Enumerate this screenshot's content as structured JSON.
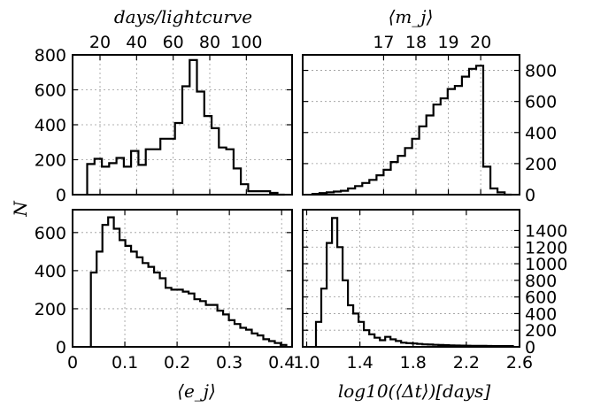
{
  "chart_data": [
    {
      "type": "histogram",
      "panel": "top-left",
      "xlabel": "days/lightcurve",
      "ylabel": "N",
      "xlim": [
        5,
        125
      ],
      "ylim": [
        0,
        800
      ],
      "xticks": [
        "20",
        "40",
        "60",
        "80",
        "100"
      ],
      "xtick_values": [
        20,
        40,
        60,
        80,
        100
      ],
      "yticks": [
        "0",
        "200",
        "400",
        "600",
        "800"
      ],
      "ytick_values": [
        0,
        200,
        400,
        600,
        800
      ],
      "bin_edges": [
        13,
        17,
        21,
        25,
        29,
        33,
        37,
        41,
        45,
        49,
        53,
        57,
        61,
        65,
        69,
        73,
        77,
        81,
        85,
        89,
        93,
        97,
        101,
        105,
        109,
        113,
        117,
        121
      ],
      "counts": [
        175,
        205,
        160,
        180,
        210,
        160,
        250,
        170,
        260,
        260,
        320,
        320,
        410,
        620,
        770,
        590,
        450,
        380,
        270,
        260,
        150,
        60,
        20,
        20,
        20,
        10,
        0
      ],
      "grid": true
    },
    {
      "type": "histogram",
      "panel": "top-right",
      "xlabel": "⟨m_j⟩",
      "xlim": [
        14.5,
        21.2
      ],
      "ylim": [
        0,
        900
      ],
      "xticks": [
        "17",
        "18",
        "19",
        "20"
      ],
      "xtick_values": [
        17,
        18,
        19,
        20
      ],
      "yticks": [
        "0",
        "200",
        "400",
        "600",
        "800"
      ],
      "ytick_values": [
        0,
        200,
        400,
        600,
        800
      ],
      "bin_edges": [
        14.8,
        15.02,
        15.24,
        15.46,
        15.68,
        15.9,
        16.12,
        16.34,
        16.56,
        16.78,
        17.0,
        17.22,
        17.44,
        17.66,
        17.88,
        18.1,
        18.32,
        18.54,
        18.76,
        18.98,
        19.2,
        19.42,
        19.64,
        19.86,
        20.08,
        20.3,
        20.52,
        20.74,
        20.96
      ],
      "counts": [
        5,
        10,
        15,
        20,
        25,
        40,
        55,
        75,
        95,
        125,
        160,
        210,
        250,
        300,
        360,
        440,
        510,
        580,
        620,
        680,
        700,
        760,
        810,
        830,
        180,
        40,
        15,
        0
      ],
      "grid": true
    },
    {
      "type": "histogram",
      "panel": "bottom-left",
      "xlabel": "⟨e_j⟩",
      "ylabel": "N",
      "xlim": [
        0,
        0.42
      ],
      "ylim": [
        0,
        720
      ],
      "xticks": [
        "0",
        "0.1",
        "0.2",
        "0.3",
        "0.4"
      ],
      "xtick_values": [
        0,
        0.1,
        0.2,
        0.3,
        0.4
      ],
      "yticks": [
        "0",
        "200",
        "400",
        "600"
      ],
      "ytick_values": [
        0,
        200,
        400,
        600
      ],
      "bin_edges": [
        0.035,
        0.046,
        0.057,
        0.068,
        0.079,
        0.09,
        0.101,
        0.112,
        0.123,
        0.134,
        0.145,
        0.156,
        0.167,
        0.178,
        0.189,
        0.2,
        0.211,
        0.222,
        0.233,
        0.244,
        0.255,
        0.266,
        0.277,
        0.288,
        0.299,
        0.31,
        0.321,
        0.332,
        0.343,
        0.354,
        0.365,
        0.376,
        0.387,
        0.398,
        0.409
      ],
      "counts": [
        390,
        500,
        640,
        680,
        620,
        560,
        530,
        500,
        470,
        440,
        420,
        390,
        360,
        310,
        300,
        300,
        290,
        280,
        250,
        240,
        220,
        220,
        190,
        170,
        140,
        120,
        100,
        90,
        70,
        60,
        40,
        30,
        20,
        10
      ],
      "grid": true
    },
    {
      "type": "histogram",
      "panel": "bottom-right",
      "xlabel": "log10(⟨Δt⟩)[days]",
      "xlim": [
        0.97,
        2.6
      ],
      "ylim": [
        0,
        1650
      ],
      "xticks": [
        "1.0",
        "1.4",
        "1.8",
        "2.2",
        "2.6"
      ],
      "xtick_values": [
        1.0,
        1.4,
        1.8,
        2.2,
        2.6
      ],
      "yticks": [
        "0",
        "200",
        "400",
        "600",
        "800",
        "1000",
        "1200",
        "1400"
      ],
      "ytick_values": [
        0,
        200,
        400,
        600,
        800,
        1000,
        1200,
        1400
      ],
      "bin_edges": [
        1.07,
        1.11,
        1.15,
        1.19,
        1.23,
        1.27,
        1.31,
        1.35,
        1.39,
        1.43,
        1.47,
        1.51,
        1.55,
        1.59,
        1.63,
        1.67,
        1.71,
        1.75,
        1.79,
        1.83,
        1.87,
        1.91,
        1.95,
        1.99,
        2.03,
        2.07,
        2.11,
        2.15,
        2.19,
        2.23,
        2.27,
        2.31,
        2.35,
        2.39,
        2.43,
        2.47,
        2.51,
        2.55
      ],
      "counts": [
        300,
        700,
        1250,
        1550,
        1200,
        800,
        500,
        400,
        300,
        200,
        150,
        110,
        80,
        120,
        90,
        70,
        50,
        45,
        40,
        35,
        30,
        28,
        25,
        22,
        20,
        18,
        16,
        15,
        14,
        13,
        12,
        12,
        11,
        10,
        10,
        10,
        10
      ],
      "grid": true
    }
  ]
}
